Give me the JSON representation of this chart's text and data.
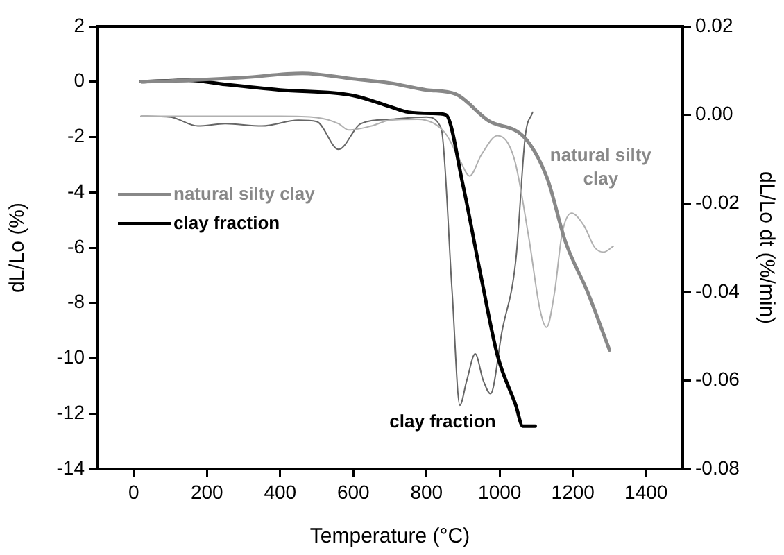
{
  "chart_data": {
    "type": "line",
    "xlabel": "Temperature (°C)",
    "ylabel": "dL/Lo (%)",
    "y2label": "dL/Lo dt (%/min)",
    "xlim": [
      -100,
      1500
    ],
    "xticks": [
      0,
      200,
      400,
      600,
      800,
      1000,
      1200,
      1400
    ],
    "ylim": [
      -14,
      2
    ],
    "yticks": [
      -14,
      -12,
      -10,
      -8,
      -6,
      -4,
      -2,
      0,
      2
    ],
    "y2lim": [
      -0.08,
      0.02
    ],
    "y2ticks": [
      {
        "value": -0.08,
        "label": "-0.08"
      },
      {
        "value": -0.06,
        "label": "-0.06"
      },
      {
        "value": -0.04,
        "label": "-0.04"
      },
      {
        "value": -0.02,
        "label": "-0.02"
      },
      {
        "value": 0,
        "label": "0.00"
      },
      {
        "value": 0.02,
        "label": "0.02"
      }
    ],
    "grid": false,
    "legend": "left",
    "marker": "none",
    "line_style": "solid",
    "series": [
      {
        "name": "natural silty clay",
        "color": "#888888",
        "x": [
          20,
          150,
          300,
          461,
          600,
          700,
          800,
          880,
          968,
          1070,
          1130,
          1180,
          1240,
          1300
        ],
        "values": [
          0,
          0.05,
          0.15,
          0.3,
          0.1,
          -0.05,
          -0.3,
          -0.45,
          -1.4,
          -2.05,
          -3.5,
          -5.8,
          -7.6,
          -9.7
        ]
      },
      {
        "name": "clay fraction",
        "color": "#000000",
        "x": [
          20,
          150,
          250,
          400,
          600,
          700,
          750,
          815,
          853,
          899,
          949,
          994,
          1044,
          1063,
          1097
        ],
        "values": [
          0,
          0.05,
          -0.1,
          -0.3,
          -0.5,
          -0.9,
          -1.1,
          -1.15,
          -1.2,
          -3.7,
          -7.05,
          -9.9,
          -11.7,
          -12.45,
          -12.45
        ]
      },
      {
        "color": "#b0b0b0",
        "axis": "y2",
        "x": [
          20,
          400,
          500,
          560,
          587,
          650,
          700,
          777,
          850,
          890,
          918,
          950,
          994,
          1040,
          1080,
          1110,
          1128,
          1150,
          1170,
          1196,
          1230,
          1260,
          1284,
          1310
        ],
        "values": [
          -0.0003,
          -0.0003,
          -0.0006,
          -0.002,
          -0.0034,
          -0.0025,
          -0.0012,
          -0.001,
          -0.004,
          -0.01,
          -0.0138,
          -0.009,
          -0.0047,
          -0.01,
          -0.028,
          -0.044,
          -0.048,
          -0.04,
          -0.027,
          -0.0222,
          -0.025,
          -0.03,
          -0.031,
          -0.0297
        ]
      },
      {
        "color": "#666666",
        "axis": "y2",
        "x": [
          20,
          100,
          175,
          250,
          350,
          450,
          500,
          560,
          620,
          700,
          800,
          840,
          870,
          891,
          910,
          933,
          955,
          975,
          1006,
          1044,
          1070,
          1090
        ],
        "values": [
          -0.0003,
          -0.0005,
          -0.0025,
          -0.002,
          -0.0025,
          -0.0012,
          -0.0015,
          -0.0078,
          -0.002,
          -0.001,
          -0.0005,
          -0.003,
          -0.04,
          -0.0656,
          -0.06,
          -0.054,
          -0.06,
          -0.063,
          -0.049,
          -0.0328,
          -0.0047,
          0.0006
        ]
      }
    ],
    "annotations": [
      "natural silty clay",
      "clay fraction"
    ]
  }
}
